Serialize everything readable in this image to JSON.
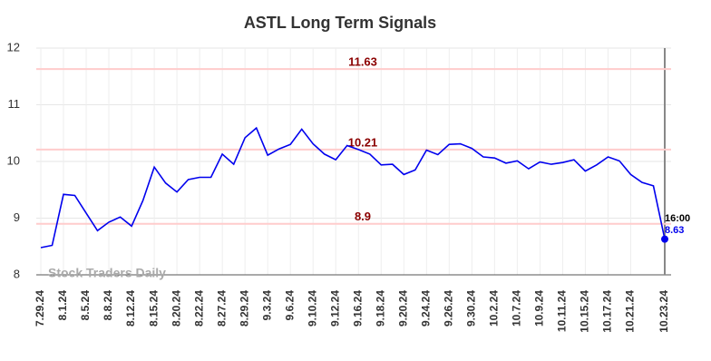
{
  "chart_data": {
    "type": "line",
    "title": "ASTL Long Term Signals",
    "categories": [
      "7.29.24",
      null,
      "8.1.24",
      null,
      "8.5.24",
      null,
      "8.8.24",
      null,
      "8.12.24",
      null,
      "8.15.24",
      null,
      "8.20.24",
      null,
      "8.22.24",
      null,
      "8.27.24",
      null,
      "8.29.24",
      null,
      "9.3.24",
      null,
      "9.6.24",
      null,
      "9.10.24",
      null,
      "9.12.24",
      null,
      "9.16.24",
      null,
      "9.18.24",
      null,
      "9.20.24",
      null,
      "9.24.24",
      null,
      "9.26.24",
      null,
      "9.30.24",
      null,
      "10.2.24",
      null,
      "10.7.24",
      null,
      "10.9.24",
      null,
      "10.11.24",
      null,
      "10.15.24",
      null,
      "10.17.24",
      null,
      "10.21.24",
      null,
      null,
      "10.23.24"
    ],
    "values": [
      8.48,
      8.52,
      9.42,
      9.4,
      9.09,
      8.78,
      8.93,
      9.02,
      8.86,
      9.31,
      9.9,
      9.62,
      9.46,
      9.68,
      9.72,
      9.72,
      10.13,
      9.95,
      10.42,
      10.59,
      10.11,
      10.22,
      10.3,
      10.57,
      10.31,
      10.13,
      10.03,
      10.28,
      10.21,
      10.13,
      9.94,
      9.95,
      9.77,
      9.85,
      10.2,
      10.12,
      10.3,
      10.31,
      10.23,
      10.08,
      10.06,
      9.97,
      10.01,
      9.87,
      9.99,
      9.95,
      9.98,
      10.03,
      9.83,
      9.94,
      10.08,
      10.01,
      9.77,
      9.63,
      9.57,
      8.63
    ],
    "color": "#0000ee",
    "ylim": [
      8,
      12
    ],
    "yticks": [
      8,
      9,
      10,
      11,
      12
    ],
    "grid": true,
    "reference_lines": [
      11.63,
      10.21,
      8.9
    ],
    "last_time_label": "16:00",
    "watermark": "Stock Traders Daily"
  }
}
